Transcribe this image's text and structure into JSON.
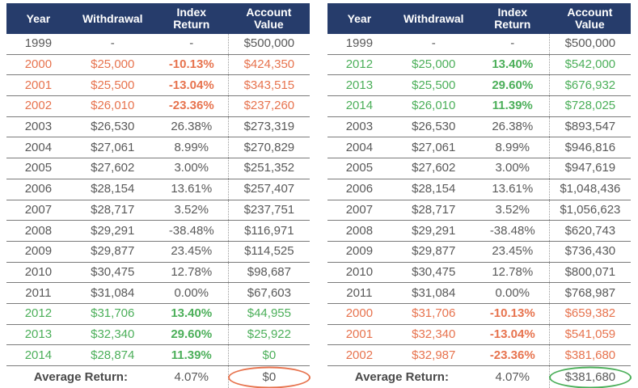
{
  "colors": {
    "header_bg": "#263C6B",
    "header_text": "#FFFFFF",
    "negative": "#E7734E",
    "positive": "#4CAF5A",
    "neutral_text": "#595959",
    "row_line": "#7A7A7A",
    "dotted_line": "#9A9A9A"
  },
  "chart_data": [
    {
      "type": "table",
      "columns": [
        "Year",
        "Withdrawal",
        "Index Return",
        "Account Value"
      ],
      "rows": [
        {
          "year": "1999",
          "withdrawal": "-",
          "index_return": "-",
          "account_value": "$500,000",
          "tone": "neutral"
        },
        {
          "year": "2000",
          "withdrawal": "$25,000",
          "index_return": "-10.13%",
          "account_value": "$424,350",
          "tone": "negative"
        },
        {
          "year": "2001",
          "withdrawal": "$25,500",
          "index_return": "-13.04%",
          "account_value": "$343,515",
          "tone": "negative"
        },
        {
          "year": "2002",
          "withdrawal": "$26,010",
          "index_return": "-23.36%",
          "account_value": "$237,260",
          "tone": "negative"
        },
        {
          "year": "2003",
          "withdrawal": "$26,530",
          "index_return": "26.38%",
          "account_value": "$273,319",
          "tone": "neutral"
        },
        {
          "year": "2004",
          "withdrawal": "$27,061",
          "index_return": "8.99%",
          "account_value": "$270,829",
          "tone": "neutral"
        },
        {
          "year": "2005",
          "withdrawal": "$27,602",
          "index_return": "3.00%",
          "account_value": "$251,352",
          "tone": "neutral"
        },
        {
          "year": "2006",
          "withdrawal": "$28,154",
          "index_return": "13.61%",
          "account_value": "$257,407",
          "tone": "neutral"
        },
        {
          "year": "2007",
          "withdrawal": "$28,717",
          "index_return": "3.52%",
          "account_value": "$237,751",
          "tone": "neutral"
        },
        {
          "year": "2008",
          "withdrawal": "$29,291",
          "index_return": "-38.48%",
          "account_value": "$116,971",
          "tone": "neutral"
        },
        {
          "year": "2009",
          "withdrawal": "$29,877",
          "index_return": "23.45%",
          "account_value": "$114,525",
          "tone": "neutral"
        },
        {
          "year": "2010",
          "withdrawal": "$30,475",
          "index_return": "12.78%",
          "account_value": "$98,687",
          "tone": "neutral"
        },
        {
          "year": "2011",
          "withdrawal": "$31,084",
          "index_return": "0.00%",
          "account_value": "$67,603",
          "tone": "neutral"
        },
        {
          "year": "2012",
          "withdrawal": "$31,706",
          "index_return": "13.40%",
          "account_value": "$44,955",
          "tone": "positive"
        },
        {
          "year": "2013",
          "withdrawal": "$32,340",
          "index_return": "29.60%",
          "account_value": "$25,922",
          "tone": "positive"
        },
        {
          "year": "2014",
          "withdrawal": "$28,874",
          "index_return": "11.39%",
          "account_value": "$0",
          "tone": "positive"
        }
      ],
      "footer": {
        "label": "Average Return:",
        "average_return": "4.07%",
        "final_value": "$0",
        "circle_tone": "negative-ring"
      }
    },
    {
      "type": "table",
      "columns": [
        "Year",
        "Withdrawal",
        "Index Return",
        "Account Value"
      ],
      "rows": [
        {
          "year": "1999",
          "withdrawal": "-",
          "index_return": "-",
          "account_value": "$500,000",
          "tone": "neutral"
        },
        {
          "year": "2012",
          "withdrawal": "$25,000",
          "index_return": "13.40%",
          "account_value": "$542,000",
          "tone": "positive"
        },
        {
          "year": "2013",
          "withdrawal": "$25,500",
          "index_return": "29.60%",
          "account_value": "$676,932",
          "tone": "positive"
        },
        {
          "year": "2014",
          "withdrawal": "$26,010",
          "index_return": "11.39%",
          "account_value": "$728,025",
          "tone": "positive"
        },
        {
          "year": "2003",
          "withdrawal": "$26,530",
          "index_return": "26.38%",
          "account_value": "$893,547",
          "tone": "neutral"
        },
        {
          "year": "2004",
          "withdrawal": "$27,061",
          "index_return": "8.99%",
          "account_value": "$946,816",
          "tone": "neutral"
        },
        {
          "year": "2005",
          "withdrawal": "$27,602",
          "index_return": "3.00%",
          "account_value": "$947,619",
          "tone": "neutral"
        },
        {
          "year": "2006",
          "withdrawal": "$28,154",
          "index_return": "13.61%",
          "account_value": "$1,048,436",
          "tone": "neutral"
        },
        {
          "year": "2007",
          "withdrawal": "$28,717",
          "index_return": "3.52%",
          "account_value": "$1,056,623",
          "tone": "neutral"
        },
        {
          "year": "2008",
          "withdrawal": "$29,291",
          "index_return": "-38.48%",
          "account_value": "$620,743",
          "tone": "neutral"
        },
        {
          "year": "2009",
          "withdrawal": "$29,877",
          "index_return": "23.45%",
          "account_value": "$736,430",
          "tone": "neutral"
        },
        {
          "year": "2010",
          "withdrawal": "$30,475",
          "index_return": "12.78%",
          "account_value": "$800,071",
          "tone": "neutral"
        },
        {
          "year": "2011",
          "withdrawal": "$31,084",
          "index_return": "0.00%",
          "account_value": "$768,987",
          "tone": "neutral"
        },
        {
          "year": "2000",
          "withdrawal": "$31,706",
          "index_return": "-10.13%",
          "account_value": "$659,382",
          "tone": "negative"
        },
        {
          "year": "2001",
          "withdrawal": "$32,340",
          "index_return": "-13.04%",
          "account_value": "$541,059",
          "tone": "negative"
        },
        {
          "year": "2002",
          "withdrawal": "$32,987",
          "index_return": "-23.36%",
          "account_value": "$381,680",
          "tone": "negative"
        }
      ],
      "footer": {
        "label": "Average Return:",
        "average_return": "4.07%",
        "final_value": "$381,680",
        "circle_tone": "positive-ring"
      }
    }
  ]
}
